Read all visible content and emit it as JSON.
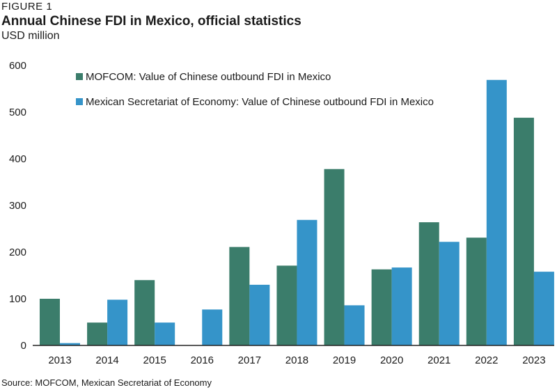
{
  "figure_label": "FIGURE 1",
  "source": "Source: MOFCOM, Mexican Secretariat of Economy",
  "colors": {
    "mofcom": "#3b7d6b",
    "se": "#3594c9",
    "axis": "#222222"
  },
  "chart_data": {
    "type": "bar",
    "title": "Annual Chinese FDI in Mexico, official statistics",
    "ylabel": "USD million",
    "xlabel": "",
    "ylim": [
      0,
      600
    ],
    "yticks": [
      0,
      100,
      200,
      300,
      400,
      500,
      600
    ],
    "grid": false,
    "legend_position": "top-left",
    "categories": [
      "2013",
      "2014",
      "2015",
      "2016",
      "2017",
      "2018",
      "2019",
      "2020",
      "2021",
      "2022",
      "2023"
    ],
    "series": [
      {
        "name": "MOFCOM: Value of Chinese outbound FDI in Mexico",
        "values": [
          100,
          49,
          140,
          0,
          211,
          171,
          378,
          163,
          264,
          231,
          488
        ]
      },
      {
        "name": "Mexican Secretariat of Economy: Value of Chinese outbound FDI in Mexico",
        "values": [
          5,
          98,
          49,
          77,
          130,
          269,
          86,
          167,
          222,
          569,
          158
        ]
      }
    ]
  }
}
